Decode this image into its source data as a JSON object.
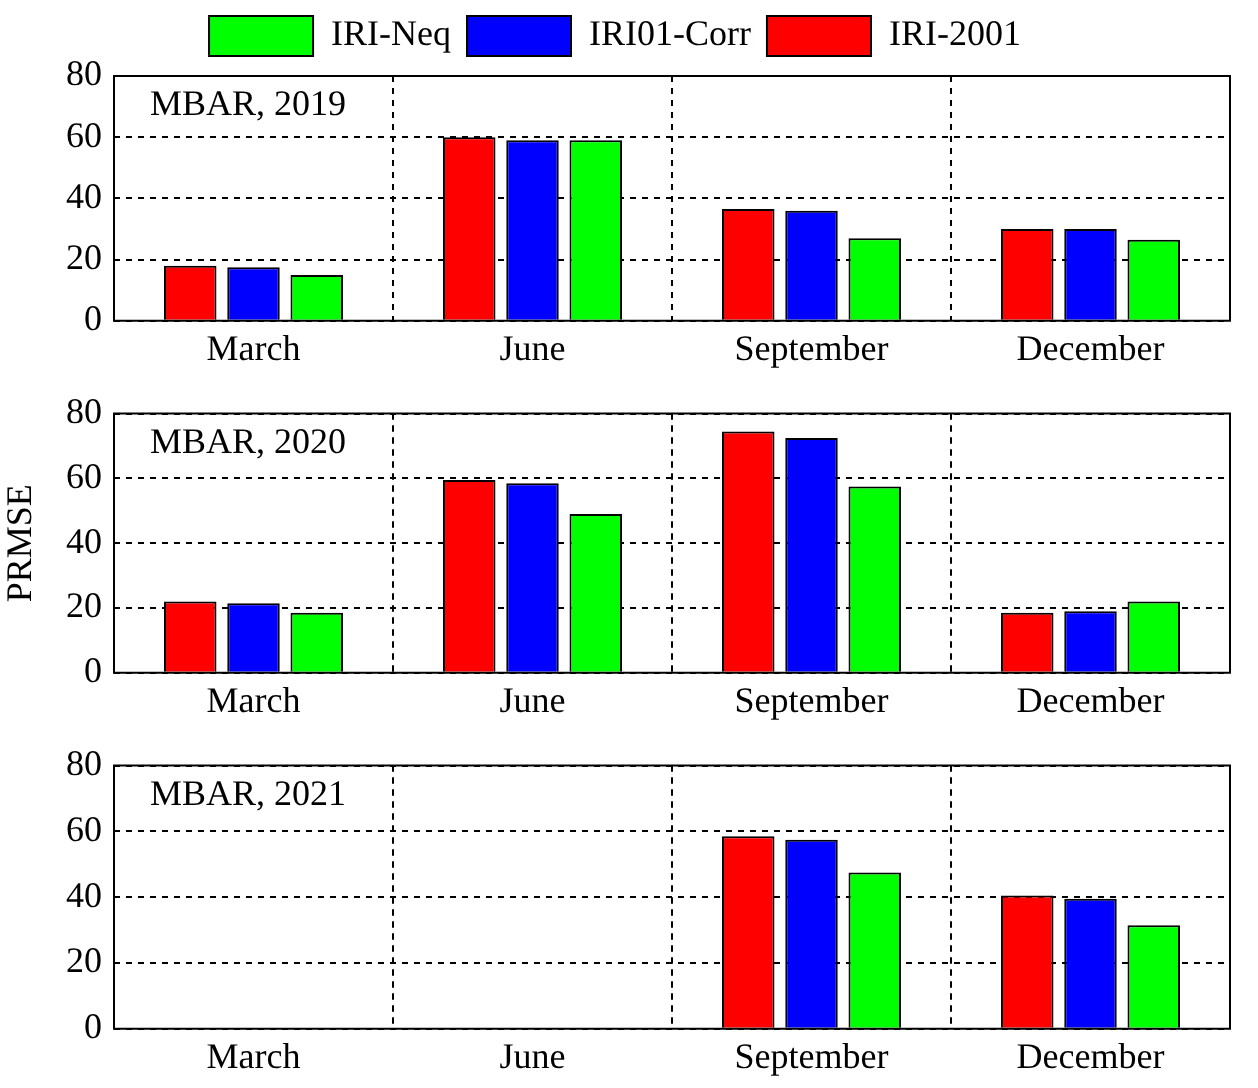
{
  "chart_data": [
    {
      "type": "bar",
      "annotations": [
        "MBAR, 2019"
      ],
      "categories": [
        "March",
        "June",
        "September",
        "December"
      ],
      "series": [
        {
          "name": "IRI-2001",
          "color": "#ff0000",
          "values": [
            18,
            60,
            36.5,
            30
          ]
        },
        {
          "name": "IRI01-Corr",
          "color": "#0000ff",
          "values": [
            17.5,
            59,
            36,
            30
          ]
        },
        {
          "name": "IRI-Neq",
          "color": "#00ff00",
          "values": [
            15,
            59,
            27,
            26.5
          ]
        }
      ],
      "ylim": [
        0,
        80
      ],
      "yticks": [
        0,
        20,
        40,
        60,
        80
      ],
      "grid": true,
      "legend": "top"
    },
    {
      "type": "bar",
      "ylabel": "PRMSE",
      "annotations": [
        "MBAR, 2020"
      ],
      "categories": [
        "March",
        "June",
        "September",
        "December"
      ],
      "series": [
        {
          "color": "#ff0000",
          "values": [
            22,
            59.5,
            74.5,
            18.5
          ]
        },
        {
          "color": "#0000ff",
          "values": [
            21.5,
            58.5,
            72.5,
            19
          ]
        },
        {
          "color": "#00ff00",
          "values": [
            18.5,
            49,
            57.5,
            22
          ]
        }
      ],
      "ylim": [
        0,
        80
      ],
      "yticks": [
        0,
        20,
        40,
        60,
        80
      ],
      "grid": true,
      "legend": false
    },
    {
      "type": "bar",
      "annotations": [
        "MBAR, 2021"
      ],
      "categories": [
        "March",
        "June",
        "September",
        "December"
      ],
      "series": [
        {
          "color": "#ff0000",
          "values": [
            null,
            null,
            58.5,
            40.5
          ]
        },
        {
          "color": "#0000ff",
          "values": [
            null,
            null,
            57.5,
            39.5
          ]
        },
        {
          "color": "#00ff00",
          "values": [
            null,
            null,
            47.5,
            31.5
          ]
        }
      ],
      "ylim": [
        0,
        80
      ],
      "yticks": [
        0,
        20,
        40,
        60,
        80
      ],
      "grid": true,
      "legend": false
    }
  ]
}
